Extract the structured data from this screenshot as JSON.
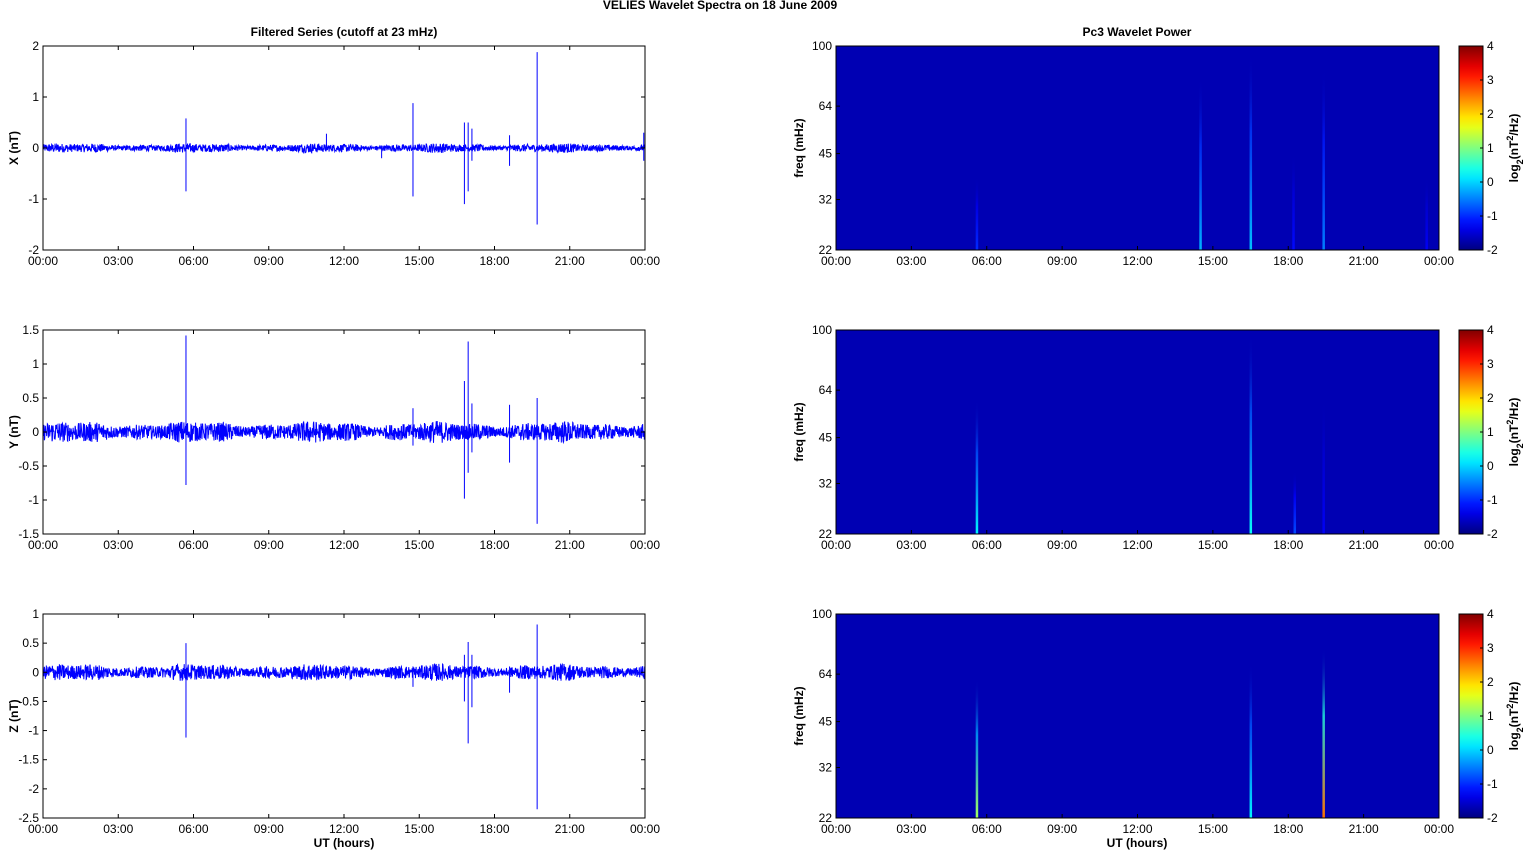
{
  "suptitle": "VELIES Wavelet Spectra on 18 June      2009",
  "left_title": "Filtered Series (cutoff at 23 mHz)",
  "right_title": "Pc3 Wavelet Power",
  "time_ticks": [
    "00:00",
    "03:00",
    "06:00",
    "09:00",
    "12:00",
    "15:00",
    "18:00",
    "21:00",
    "00:00"
  ],
  "xlabel": "UT (hours)",
  "colors": {
    "trace": "#0000ff",
    "background_low": "#00008f",
    "colormap": "jet"
  },
  "chart_data": [
    {
      "type": "line",
      "id": "x-series",
      "ylabel": "X (nT)",
      "ylim": [
        -2,
        2
      ],
      "yticks": [
        "2",
        "1",
        "0",
        "-1",
        "-2"
      ],
      "ytick_values": [
        2,
        1,
        0,
        -1,
        -2
      ],
      "xlim": [
        0,
        24
      ],
      "noise_amplitude": 0.07,
      "spikes": [
        {
          "t": 5.7,
          "max": 0.58,
          "min": -0.85
        },
        {
          "t": 11.3,
          "max": 0.28,
          "min": -0.05
        },
        {
          "t": 13.5,
          "max": 0.05,
          "min": -0.2
        },
        {
          "t": 14.75,
          "max": 0.88,
          "min": -0.95
        },
        {
          "t": 16.8,
          "max": 0.5,
          "min": -1.1
        },
        {
          "t": 16.95,
          "max": 0.5,
          "min": -0.85
        },
        {
          "t": 17.1,
          "max": 0.38,
          "min": -0.25
        },
        {
          "t": 18.6,
          "max": 0.25,
          "min": -0.35
        },
        {
          "t": 19.7,
          "max": 1.88,
          "min": -1.5
        },
        {
          "t": 23.95,
          "max": 0.3,
          "min": -0.25
        }
      ]
    },
    {
      "type": "line",
      "id": "y-series",
      "ylabel": "Y (nT)",
      "ylim": [
        -1.5,
        1.5
      ],
      "yticks": [
        "1.5",
        "1",
        "0.5",
        "0",
        "-0.5",
        "-1",
        "-1.5"
      ],
      "ytick_values": [
        1.5,
        1,
        0.5,
        0,
        -0.5,
        -1,
        -1.5
      ],
      "xlim": [
        0,
        24
      ],
      "noise_amplitude": 0.12,
      "spikes": [
        {
          "t": 5.7,
          "max": 1.42,
          "min": -0.78
        },
        {
          "t": 14.75,
          "max": 0.35,
          "min": -0.2
        },
        {
          "t": 16.8,
          "max": 0.75,
          "min": -0.98
        },
        {
          "t": 16.95,
          "max": 1.33,
          "min": -0.6
        },
        {
          "t": 17.1,
          "max": 0.42,
          "min": -0.3
        },
        {
          "t": 18.6,
          "max": 0.4,
          "min": -0.45
        },
        {
          "t": 19.7,
          "max": 0.5,
          "min": -1.35
        }
      ]
    },
    {
      "type": "line",
      "id": "z-series",
      "ylabel": "Z (nT)",
      "ylim": [
        -2.5,
        1
      ],
      "yticks": [
        "1",
        "0.5",
        "0",
        "-0.5",
        "-1",
        "-1.5",
        "-2",
        "-2.5"
      ],
      "ytick_values": [
        1,
        0.5,
        0,
        -0.5,
        -1,
        -1.5,
        -2,
        -2.5
      ],
      "xlim": [
        0,
        24
      ],
      "noise_amplitude": 0.11,
      "spikes": [
        {
          "t": 5.7,
          "max": 0.5,
          "min": -1.12
        },
        {
          "t": 14.75,
          "max": 0.1,
          "min": -0.25
        },
        {
          "t": 16.8,
          "max": 0.3,
          "min": -0.5
        },
        {
          "t": 16.95,
          "max": 0.52,
          "min": -1.22
        },
        {
          "t": 17.1,
          "max": 0.3,
          "min": -0.6
        },
        {
          "t": 18.6,
          "max": 0.1,
          "min": -0.35
        },
        {
          "t": 19.7,
          "max": 0.82,
          "min": -2.35
        }
      ]
    },
    {
      "type": "heatmap",
      "id": "x-wavelet",
      "ylabel": "freq (mHz)",
      "yscale": "log",
      "ylim": [
        22,
        100
      ],
      "yticks": [
        "100",
        "64",
        "45",
        "32",
        "22"
      ],
      "ytick_values": [
        100,
        64,
        45,
        32,
        22
      ],
      "xlim": [
        0,
        24
      ],
      "clim": [
        -2,
        4
      ],
      "cticks": [
        "4",
        "3",
        "2",
        "1",
        "0",
        "-1",
        "-2"
      ],
      "clabel_main": "log",
      "clabel_sub": "2",
      "clabel_paren": "(nT",
      "clabel_sup": "2",
      "clabel_end": "/Hz)",
      "bursts": [
        {
          "t": 5.6,
          "fmax": 38,
          "level": -1.0
        },
        {
          "t": 14.5,
          "fmax": 80,
          "level": -0.2
        },
        {
          "t": 16.5,
          "fmax": 95,
          "level": -0.1
        },
        {
          "t": 18.2,
          "fmax": 45,
          "level": -1.2
        },
        {
          "t": 19.4,
          "fmax": 85,
          "level": -0.5
        },
        {
          "t": 23.5,
          "fmax": 38,
          "level": -1.3
        }
      ]
    },
    {
      "type": "heatmap",
      "id": "y-wavelet",
      "ylabel": "freq (mHz)",
      "yscale": "log",
      "ylim": [
        22,
        100
      ],
      "yticks": [
        "100",
        "64",
        "45",
        "32",
        "22"
      ],
      "ytick_values": [
        100,
        64,
        45,
        32,
        22
      ],
      "xlim": [
        0,
        24
      ],
      "clim": [
        -2,
        4
      ],
      "cticks": [
        "4",
        "3",
        "2",
        "1",
        "0",
        "-1",
        "-2"
      ],
      "clabel_main": "log",
      "clabel_sub": "2",
      "clabel_paren": "(nT",
      "clabel_sup": "2",
      "clabel_end": "/Hz)",
      "bursts": [
        {
          "t": 5.6,
          "fmax": 60,
          "level": 0.2
        },
        {
          "t": 16.5,
          "fmax": 98,
          "level": 0.3
        },
        {
          "t": 18.25,
          "fmax": 35,
          "level": -0.8
        },
        {
          "t": 19.4,
          "fmax": 60,
          "level": -1.3
        }
      ]
    },
    {
      "type": "heatmap",
      "id": "z-wavelet",
      "ylabel": "freq (mHz)",
      "yscale": "log",
      "ylim": [
        22,
        100
      ],
      "yticks": [
        "100",
        "64",
        "45",
        "32",
        "22"
      ],
      "ytick_values": [
        100,
        64,
        45,
        32,
        22
      ],
      "xlim": [
        0,
        24
      ],
      "clim": [
        -2,
        4
      ],
      "cticks": [
        "4",
        "3",
        "2",
        "1",
        "0",
        "-1",
        "-2"
      ],
      "clabel_main": "log",
      "clabel_sub": "2",
      "clabel_paren": "(nT",
      "clabel_sup": "2",
      "clabel_end": "/Hz)",
      "bursts": [
        {
          "t": 5.6,
          "fmax": 62,
          "level": 1.2
        },
        {
          "t": 16.5,
          "fmax": 70,
          "level": 0.2
        },
        {
          "t": 19.4,
          "fmax": 78,
          "level": 2.6
        }
      ]
    }
  ]
}
